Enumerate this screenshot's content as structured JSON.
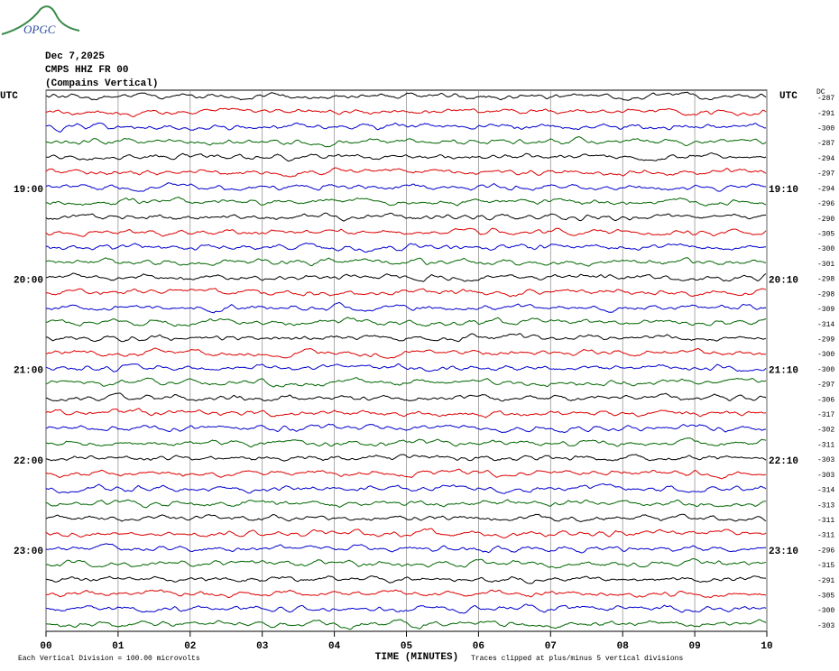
{
  "logo": "OPGC",
  "header": {
    "date": "Dec 7,2025",
    "station": "CMPS HHZ FR 00",
    "description": "(Compains Vertical)"
  },
  "left_axis": {
    "title": "UTC",
    "labels": [
      "19:00",
      "20:00",
      "21:00",
      "22:00",
      "23:00"
    ]
  },
  "right_axis": {
    "title": "UTC",
    "labels": [
      "19:10",
      "20:10",
      "21:10",
      "22:10",
      "23:10"
    ]
  },
  "dc_title": "DC",
  "dc_offsets": [
    "-287",
    "-291",
    "-300",
    "-287",
    "-294",
    "-297",
    "-294",
    "-296",
    "-290",
    "-305",
    "-300",
    "-301",
    "-298",
    "-298",
    "-309",
    "-314",
    "-299",
    "-300",
    "-300",
    "-297",
    "-306",
    "-317",
    "-302",
    "-311",
    "-303",
    "-303",
    "-314",
    "-313",
    "-311",
    "-311",
    "-296",
    "-315",
    "-291",
    "-305",
    "-300",
    "-303"
  ],
  "x_axis": {
    "title": "TIME (MINUTES)",
    "ticks": [
      "00",
      "01",
      "02",
      "03",
      "04",
      "05",
      "06",
      "07",
      "08",
      "09",
      "10"
    ]
  },
  "footer": {
    "scale_note": "Each Vertical Division =  100.00 microvolts",
    "clip_note": "Traces clipped at plus/minus 5 vertical divisions"
  }
}
